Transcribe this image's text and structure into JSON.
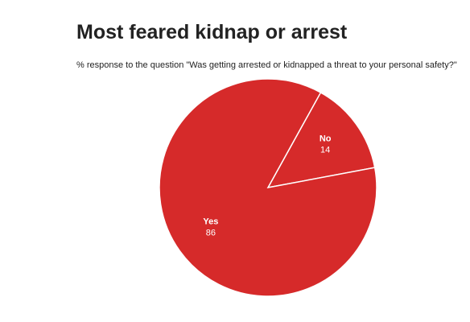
{
  "chart_data": {
    "type": "pie",
    "title": "Most feared kidnap or arrest",
    "subtitle": "% response to the question \"Was getting arrested or kidnapped a threat to your personal safety?\"",
    "categories": [
      "No",
      "Yes"
    ],
    "values": [
      14,
      86
    ],
    "color": "#d62a2a"
  }
}
